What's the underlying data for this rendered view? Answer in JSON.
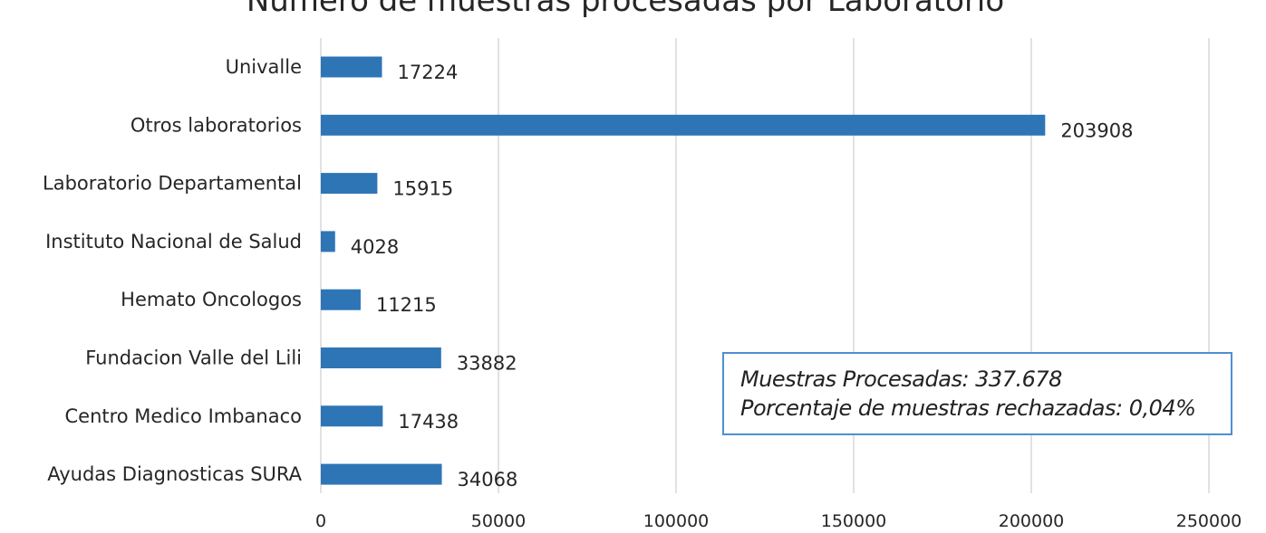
{
  "chart_data": {
    "type": "bar",
    "orientation": "horizontal",
    "title": "Número de muestras procesadas por Laboratorio",
    "categories": [
      "Univalle",
      "Otros laboratorios",
      "Laboratorio Departamental",
      "Instituto Nacional de Salud",
      "Hemato Oncologos",
      "Fundacion Valle del Lili",
      "Centro Medico Imbanaco",
      "Ayudas Diagnosticas SURA"
    ],
    "values": [
      17224,
      203908,
      15915,
      4028,
      11215,
      33882,
      17438,
      34068
    ],
    "xlim": [
      0,
      250000
    ],
    "xticks": [
      "0",
      "50000",
      "100000",
      "150000",
      "200000",
      "250000"
    ],
    "grid": true,
    "bar_color": "#2e75b6",
    "grid_color": "#d9d9d9"
  },
  "annotation": {
    "line1": "Muestras Procesadas: 337.678",
    "line2": "Porcentaje de muestras rechazadas: 0,04%",
    "border_color": "#4f8fd2"
  }
}
